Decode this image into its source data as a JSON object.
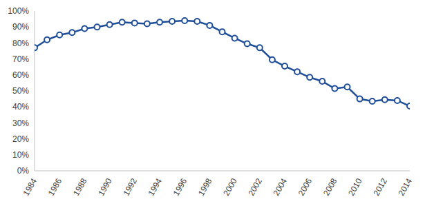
{
  "chart_data": {
    "type": "line",
    "x": [
      1984,
      1985,
      1986,
      1987,
      1988,
      1989,
      1990,
      1991,
      1992,
      1993,
      1994,
      1995,
      1996,
      1997,
      1998,
      1999,
      2000,
      2001,
      2002,
      2003,
      2004,
      2005,
      2006,
      2007,
      2008,
      2009,
      2010,
      2011,
      2012,
      2013,
      2014
    ],
    "values": [
      77,
      82,
      85,
      86.5,
      89,
      90,
      91.5,
      93,
      92.5,
      92,
      93,
      93.5,
      94,
      93.5,
      91,
      87,
      83,
      79.5,
      77,
      69.5,
      65.5,
      62,
      58.5,
      56,
      51.5,
      52.5,
      45,
      43.5,
      44.5,
      44,
      40.5
    ],
    "color": "#1f4e99",
    "marker": "circle",
    "xlim": [
      1984,
      2014
    ],
    "xticks": [
      1984,
      1986,
      1988,
      1990,
      1992,
      1994,
      1996,
      1998,
      2000,
      2002,
      2004,
      2006,
      2008,
      2010,
      2012,
      2014
    ],
    "ylim": [
      0,
      100
    ],
    "yticks": [
      {
        "value": 0,
        "label": "0%"
      },
      {
        "value": 10,
        "label": "10%"
      },
      {
        "value": 20,
        "label": "20%"
      },
      {
        "value": 30,
        "label": "30%"
      },
      {
        "value": 40,
        "label": "40%"
      },
      {
        "value": 50,
        "label": "50%"
      },
      {
        "value": 60,
        "label": "60%"
      },
      {
        "value": 70,
        "label": "70%"
      },
      {
        "value": 80,
        "label": "80%"
      },
      {
        "value": 90,
        "label": "90%"
      },
      {
        "value": 100,
        "label": "100%"
      }
    ],
    "grid": false
  }
}
